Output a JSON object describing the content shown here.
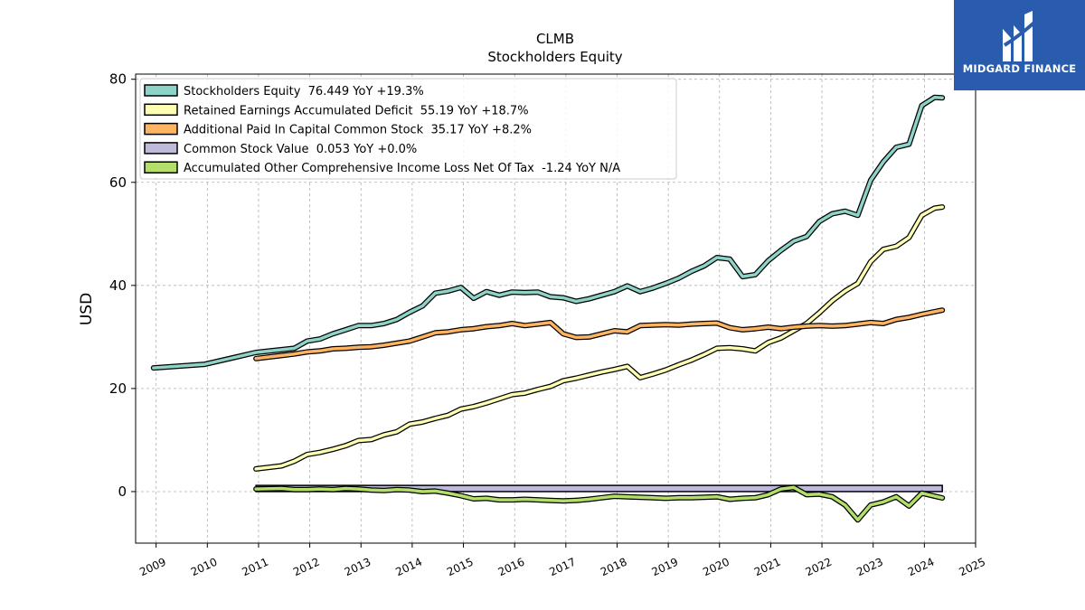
{
  "brand": {
    "name": "MIDGARD FINANCE",
    "color": "#2a5cae",
    "icon": "midgard-logo-icon"
  },
  "chart_data": {
    "type": "line",
    "title": "CLMB",
    "subtitle": "Stockholders  Equity",
    "ylabel": "USD",
    "xlabel": "",
    "xlim": [
      2008.6,
      2025.0
    ],
    "ylim": [
      -10,
      81
    ],
    "x_ticks": [
      "2009",
      "2010",
      "2011",
      "2012",
      "2013",
      "2014",
      "2015",
      "2016",
      "2017",
      "2018",
      "2019",
      "2020",
      "2021",
      "2022",
      "2023",
      "2024",
      "2025"
    ],
    "y_ticks": [
      0,
      20,
      40,
      60,
      80
    ],
    "grid": true,
    "legend_position": "top-left",
    "series": [
      {
        "name": "Stockholders Equity  76.449 YoY +19.3%",
        "color": "#8dd3c7",
        "points": [
          [
            2008.95,
            24.0
          ],
          [
            2009.95,
            24.7
          ],
          [
            2010.95,
            27.0
          ],
          [
            2011.7,
            27.8
          ],
          [
            2011.95,
            29.2
          ],
          [
            2012.2,
            29.6
          ],
          [
            2012.45,
            30.6
          ],
          [
            2012.7,
            31.4
          ],
          [
            2012.95,
            32.2
          ],
          [
            2013.2,
            32.2
          ],
          [
            2013.45,
            32.6
          ],
          [
            2013.7,
            33.4
          ],
          [
            2013.95,
            34.8
          ],
          [
            2014.2,
            36.0
          ],
          [
            2014.45,
            38.5
          ],
          [
            2014.7,
            38.9
          ],
          [
            2014.95,
            39.6
          ],
          [
            2015.2,
            37.5
          ],
          [
            2015.45,
            38.8
          ],
          [
            2015.7,
            38.1
          ],
          [
            2015.95,
            38.7
          ],
          [
            2016.2,
            38.6
          ],
          [
            2016.45,
            38.7
          ],
          [
            2016.7,
            37.8
          ],
          [
            2016.95,
            37.6
          ],
          [
            2017.2,
            36.9
          ],
          [
            2017.45,
            37.4
          ],
          [
            2017.7,
            38.1
          ],
          [
            2017.95,
            38.8
          ],
          [
            2018.2,
            39.9
          ],
          [
            2018.45,
            38.8
          ],
          [
            2018.7,
            39.5
          ],
          [
            2018.95,
            40.4
          ],
          [
            2019.2,
            41.4
          ],
          [
            2019.45,
            42.7
          ],
          [
            2019.7,
            43.8
          ],
          [
            2019.95,
            45.4
          ],
          [
            2020.2,
            45.1
          ],
          [
            2020.45,
            41.7
          ],
          [
            2020.7,
            42.1
          ],
          [
            2020.95,
            44.8
          ],
          [
            2021.2,
            46.8
          ],
          [
            2021.45,
            48.6
          ],
          [
            2021.7,
            49.5
          ],
          [
            2021.95,
            52.4
          ],
          [
            2022.2,
            53.9
          ],
          [
            2022.45,
            54.4
          ],
          [
            2022.7,
            53.6
          ],
          [
            2022.95,
            60.4
          ],
          [
            2023.2,
            64.0
          ],
          [
            2023.45,
            66.8
          ],
          [
            2023.7,
            67.4
          ],
          [
            2023.95,
            74.9
          ],
          [
            2024.2,
            76.5
          ],
          [
            2024.35,
            76.4
          ]
        ]
      },
      {
        "name": "Retained Earnings Accumulated Deficit  55.19 YoY +18.7%",
        "color": "#ffffb3",
        "points": [
          [
            2010.95,
            4.4
          ],
          [
            2011.45,
            5.0
          ],
          [
            2011.7,
            5.9
          ],
          [
            2011.95,
            7.2
          ],
          [
            2012.2,
            7.6
          ],
          [
            2012.45,
            8.2
          ],
          [
            2012.7,
            8.9
          ],
          [
            2012.95,
            9.9
          ],
          [
            2013.2,
            10.1
          ],
          [
            2013.45,
            11.0
          ],
          [
            2013.7,
            11.6
          ],
          [
            2013.95,
            13.1
          ],
          [
            2014.2,
            13.5
          ],
          [
            2014.45,
            14.2
          ],
          [
            2014.7,
            14.8
          ],
          [
            2014.95,
            16.0
          ],
          [
            2015.2,
            16.5
          ],
          [
            2015.45,
            17.2
          ],
          [
            2015.7,
            18.0
          ],
          [
            2015.95,
            18.8
          ],
          [
            2016.2,
            19.1
          ],
          [
            2016.45,
            19.8
          ],
          [
            2016.7,
            20.4
          ],
          [
            2016.95,
            21.5
          ],
          [
            2017.2,
            22.0
          ],
          [
            2017.45,
            22.6
          ],
          [
            2017.7,
            23.2
          ],
          [
            2017.95,
            23.7
          ],
          [
            2018.2,
            24.3
          ],
          [
            2018.45,
            22.1
          ],
          [
            2018.7,
            22.8
          ],
          [
            2018.95,
            23.6
          ],
          [
            2019.2,
            24.6
          ],
          [
            2019.45,
            25.5
          ],
          [
            2019.7,
            26.6
          ],
          [
            2019.95,
            27.8
          ],
          [
            2020.2,
            27.9
          ],
          [
            2020.45,
            27.7
          ],
          [
            2020.7,
            27.3
          ],
          [
            2020.95,
            28.9
          ],
          [
            2021.2,
            29.8
          ],
          [
            2021.45,
            31.2
          ],
          [
            2021.7,
            32.6
          ],
          [
            2021.95,
            34.7
          ],
          [
            2022.2,
            37.0
          ],
          [
            2022.45,
            38.9
          ],
          [
            2022.7,
            40.4
          ],
          [
            2022.95,
            44.6
          ],
          [
            2023.2,
            47.0
          ],
          [
            2023.45,
            47.6
          ],
          [
            2023.7,
            49.3
          ],
          [
            2023.95,
            53.6
          ],
          [
            2024.2,
            55.0
          ],
          [
            2024.35,
            55.2
          ]
        ]
      },
      {
        "name": "Additional Paid In Capital Common Stock  35.17 YoY +8.2%",
        "color": "#fdb462",
        "points": [
          [
            2010.95,
            25.8
          ],
          [
            2011.45,
            26.4
          ],
          [
            2011.7,
            26.7
          ],
          [
            2011.95,
            27.1
          ],
          [
            2012.2,
            27.3
          ],
          [
            2012.45,
            27.7
          ],
          [
            2012.7,
            27.8
          ],
          [
            2012.95,
            28.0
          ],
          [
            2013.2,
            28.1
          ],
          [
            2013.45,
            28.4
          ],
          [
            2013.7,
            28.8
          ],
          [
            2013.95,
            29.2
          ],
          [
            2014.2,
            30.0
          ],
          [
            2014.45,
            30.8
          ],
          [
            2014.7,
            31.0
          ],
          [
            2014.95,
            31.4
          ],
          [
            2015.2,
            31.6
          ],
          [
            2015.45,
            32.0
          ],
          [
            2015.7,
            32.2
          ],
          [
            2015.95,
            32.6
          ],
          [
            2016.2,
            32.2
          ],
          [
            2016.45,
            32.5
          ],
          [
            2016.7,
            32.8
          ],
          [
            2016.95,
            30.6
          ],
          [
            2017.2,
            29.9
          ],
          [
            2017.45,
            30.0
          ],
          [
            2017.7,
            30.6
          ],
          [
            2017.95,
            31.2
          ],
          [
            2018.2,
            31.0
          ],
          [
            2018.45,
            32.2
          ],
          [
            2018.7,
            32.3
          ],
          [
            2018.95,
            32.4
          ],
          [
            2019.2,
            32.3
          ],
          [
            2019.45,
            32.5
          ],
          [
            2019.7,
            32.6
          ],
          [
            2019.95,
            32.7
          ],
          [
            2020.2,
            31.8
          ],
          [
            2020.45,
            31.4
          ],
          [
            2020.7,
            31.6
          ],
          [
            2020.95,
            31.9
          ],
          [
            2021.2,
            31.6
          ],
          [
            2021.45,
            31.9
          ],
          [
            2021.7,
            32.1
          ],
          [
            2021.95,
            32.2
          ],
          [
            2022.2,
            32.1
          ],
          [
            2022.45,
            32.2
          ],
          [
            2022.7,
            32.5
          ],
          [
            2022.95,
            32.8
          ],
          [
            2023.2,
            32.6
          ],
          [
            2023.45,
            33.4
          ],
          [
            2023.7,
            33.8
          ],
          [
            2023.95,
            34.4
          ],
          [
            2024.2,
            34.9
          ],
          [
            2024.35,
            35.2
          ]
        ]
      },
      {
        "name": "Common Stock Value  0.053 YoY +0.0%",
        "color": "#bebada",
        "points": [
          [
            2010.95,
            0.05
          ],
          [
            2024.35,
            0.053
          ]
        ]
      },
      {
        "name": "Accumulated Other Comprehensive Income Loss Net Of Tax  -1.24 YoY N/A",
        "color": "#b3de69",
        "points": [
          [
            2010.95,
            0.5
          ],
          [
            2011.45,
            0.6
          ],
          [
            2011.7,
            0.4
          ],
          [
            2011.95,
            0.4
          ],
          [
            2012.2,
            0.5
          ],
          [
            2012.45,
            0.4
          ],
          [
            2012.7,
            0.6
          ],
          [
            2012.95,
            0.5
          ],
          [
            2013.2,
            0.3
          ],
          [
            2013.45,
            0.2
          ],
          [
            2013.7,
            0.4
          ],
          [
            2013.95,
            0.3
          ],
          [
            2014.2,
            0.0
          ],
          [
            2014.45,
            0.1
          ],
          [
            2014.7,
            -0.3
          ],
          [
            2014.95,
            -0.8
          ],
          [
            2015.2,
            -1.4
          ],
          [
            2015.45,
            -1.3
          ],
          [
            2015.7,
            -1.6
          ],
          [
            2015.95,
            -1.6
          ],
          [
            2016.2,
            -1.5
          ],
          [
            2016.45,
            -1.6
          ],
          [
            2016.7,
            -1.7
          ],
          [
            2016.95,
            -1.8
          ],
          [
            2017.2,
            -1.7
          ],
          [
            2017.45,
            -1.5
          ],
          [
            2017.7,
            -1.2
          ],
          [
            2017.95,
            -0.9
          ],
          [
            2018.2,
            -1.0
          ],
          [
            2018.45,
            -1.1
          ],
          [
            2018.7,
            -1.2
          ],
          [
            2018.95,
            -1.3
          ],
          [
            2019.2,
            -1.2
          ],
          [
            2019.45,
            -1.2
          ],
          [
            2019.7,
            -1.1
          ],
          [
            2019.95,
            -1.0
          ],
          [
            2020.2,
            -1.5
          ],
          [
            2020.45,
            -1.3
          ],
          [
            2020.7,
            -1.2
          ],
          [
            2020.95,
            -0.6
          ],
          [
            2021.2,
            0.5
          ],
          [
            2021.45,
            0.8
          ],
          [
            2021.7,
            -0.6
          ],
          [
            2021.95,
            -0.5
          ],
          [
            2022.2,
            -1.0
          ],
          [
            2022.45,
            -2.6
          ],
          [
            2022.7,
            -5.5
          ],
          [
            2022.95,
            -2.6
          ],
          [
            2023.2,
            -2.0
          ],
          [
            2023.45,
            -1.0
          ],
          [
            2023.7,
            -2.8
          ],
          [
            2023.95,
            -0.3
          ],
          [
            2024.2,
            -0.9
          ],
          [
            2024.35,
            -1.24
          ]
        ]
      }
    ]
  }
}
